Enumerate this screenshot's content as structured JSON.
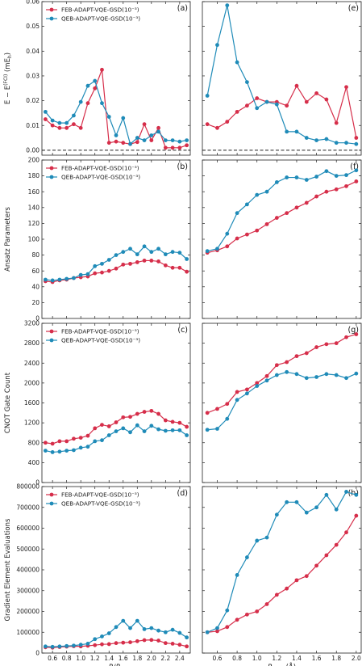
{
  "colors": {
    "feb": "#d62e4a",
    "qeb": "#1f8bb8"
  },
  "chart_data": [
    {
      "type": "line",
      "panel": "(a)",
      "ylabel": "E − E(FCI) (mEh)",
      "xlabel": "",
      "ylim": [
        -0.002,
        0.06
      ],
      "yticks": [
        "0.00",
        "0.01",
        "0.02",
        "0.03",
        "0.04",
        "0.05",
        "0.06"
      ],
      "xticks": [],
      "reference_line": 0,
      "legend": "top-left",
      "x": [
        0.5,
        0.6,
        0.7,
        0.8,
        0.9,
        1.0,
        1.1,
        1.2,
        1.3,
        1.4,
        1.5,
        1.6,
        1.7,
        1.8,
        1.9,
        2.0,
        2.1,
        2.2,
        2.3,
        2.4,
        2.5
      ],
      "series": [
        {
          "name": "FEB-ADAPT-VQE-GSD(10⁻³)",
          "values": [
            0.0125,
            0.01,
            0.009,
            0.009,
            0.0105,
            0.009,
            0.019,
            0.025,
            0.0325,
            0.003,
            0.0035,
            0.003,
            0.0025,
            0.0033,
            0.0105,
            0.004,
            0.009,
            0.001,
            0.001,
            0.001,
            0.002
          ]
        },
        {
          "name": "QEB-ADAPT-VQE-GSD(10⁻³)",
          "values": [
            0.0155,
            0.012,
            0.011,
            0.011,
            0.014,
            0.0195,
            0.026,
            0.028,
            0.019,
            0.0135,
            0.006,
            0.013,
            0.0025,
            0.005,
            0.004,
            0.006,
            0.0075,
            0.004,
            0.004,
            0.0035,
            0.004
          ]
        }
      ]
    },
    {
      "type": "line",
      "panel": "(e)",
      "ylabel": "",
      "xlabel": "",
      "ylim": [
        -0.002,
        0.06
      ],
      "yticks": [],
      "xticks": [],
      "reference_line": 0,
      "x": [
        0.5,
        0.6,
        0.7,
        0.8,
        0.9,
        1.0,
        1.1,
        1.2,
        1.3,
        1.4,
        1.5,
        1.6,
        1.7,
        1.8,
        1.9,
        2.0
      ],
      "series": [
        {
          "name": "FEB-ADAPT-VQE-GSD(10⁻³)",
          "values": [
            0.0105,
            0.009,
            0.0115,
            0.0155,
            0.018,
            0.021,
            0.0195,
            0.0195,
            0.018,
            0.026,
            0.0195,
            0.023,
            0.0205,
            0.011,
            0.0255,
            0.005
          ]
        },
        {
          "name": "QEB-ADAPT-VQE-GSD(10⁻³)",
          "values": [
            0.022,
            0.0425,
            0.0585,
            0.0355,
            0.0275,
            0.017,
            0.0195,
            0.0185,
            0.0075,
            0.0075,
            0.005,
            0.004,
            0.0045,
            0.003,
            0.003,
            0.0025
          ]
        }
      ]
    },
    {
      "type": "line",
      "panel": "(b)",
      "ylabel": "Ansatz Parameters",
      "xlabel": "",
      "ylim": [
        0,
        200
      ],
      "yticks": [
        "0",
        "20",
        "40",
        "60",
        "80",
        "100",
        "120",
        "140",
        "160",
        "180",
        "200"
      ],
      "xticks": [],
      "legend": "top-left",
      "x": [
        0.5,
        0.6,
        0.7,
        0.8,
        0.9,
        1.0,
        1.1,
        1.2,
        1.3,
        1.4,
        1.5,
        1.6,
        1.7,
        1.8,
        1.9,
        2.0,
        2.1,
        2.2,
        2.3,
        2.4,
        2.5
      ],
      "series": [
        {
          "name": "FEB-ADAPT-VQE-GSD(10⁻³)",
          "values": [
            47,
            46,
            48,
            49,
            51,
            52,
            53,
            57,
            58,
            60,
            63,
            68,
            69,
            71,
            73,
            73,
            72,
            67,
            64,
            64,
            59
          ]
        },
        {
          "name": "QEB-ADAPT-VQE-GSD(10⁻³)",
          "values": [
            49,
            48,
            49,
            50,
            51,
            55,
            56,
            66,
            69,
            74,
            80,
            84,
            88,
            81,
            91,
            84,
            88,
            81,
            84,
            83,
            75
          ]
        }
      ]
    },
    {
      "type": "line",
      "panel": "(f)",
      "ylabel": "",
      "xlabel": "",
      "ylim": [
        0,
        200
      ],
      "yticks": [],
      "xticks": [],
      "x": [
        0.5,
        0.6,
        0.7,
        0.8,
        0.9,
        1.0,
        1.1,
        1.2,
        1.3,
        1.4,
        1.5,
        1.6,
        1.7,
        1.8,
        1.9,
        2.0
      ],
      "series": [
        {
          "name": "FEB-ADAPT-VQE-GSD(10⁻³)",
          "values": [
            83,
            86,
            91,
            101,
            106,
            111,
            119,
            127,
            133,
            140,
            146,
            154,
            160,
            163,
            167,
            173
          ]
        },
        {
          "name": "QEB-ADAPT-VQE-GSD(10⁻³)",
          "values": [
            85,
            88,
            107,
            133,
            144,
            156,
            160,
            172,
            178,
            178,
            175,
            179,
            186,
            180,
            181,
            187
          ]
        }
      ]
    },
    {
      "type": "line",
      "panel": "(c)",
      "ylabel": "CNOT Gate Count",
      "xlabel": "",
      "ylim": [
        0,
        3200
      ],
      "yticks": [
        "0",
        "400",
        "800",
        "1200",
        "1600",
        "2000",
        "2400",
        "2800",
        "3200"
      ],
      "xticks": [],
      "legend": "top-left",
      "x": [
        0.5,
        0.6,
        0.7,
        0.8,
        0.9,
        1.0,
        1.1,
        1.2,
        1.3,
        1.4,
        1.5,
        1.6,
        1.7,
        1.8,
        1.9,
        2.0,
        2.1,
        2.2,
        2.3,
        2.4,
        2.5
      ],
      "series": [
        {
          "name": "FEB-ADAPT-VQE-GSD(10⁻³)",
          "values": [
            800,
            780,
            830,
            830,
            880,
            900,
            940,
            1090,
            1160,
            1130,
            1210,
            1310,
            1320,
            1380,
            1420,
            1440,
            1380,
            1250,
            1220,
            1200,
            1120
          ]
        },
        {
          "name": "QEB-ADAPT-VQE-GSD(10⁻³)",
          "values": [
            640,
            610,
            620,
            640,
            650,
            700,
            720,
            830,
            850,
            950,
            1030,
            1090,
            1010,
            1150,
            1030,
            1140,
            1070,
            1040,
            1050,
            1050,
            950
          ]
        }
      ]
    },
    {
      "type": "line",
      "panel": "(g)",
      "ylabel": "",
      "xlabel": "",
      "ylim": [
        0,
        3200
      ],
      "yticks": [],
      "xticks": [],
      "x": [
        0.5,
        0.6,
        0.7,
        0.8,
        0.9,
        1.0,
        1.1,
        1.2,
        1.3,
        1.4,
        1.5,
        1.6,
        1.7,
        1.8,
        1.9,
        2.0
      ],
      "series": [
        {
          "name": "FEB-ADAPT-VQE-GSD(10⁻³)",
          "values": [
            1400,
            1480,
            1580,
            1820,
            1870,
            2000,
            2140,
            2360,
            2420,
            2540,
            2600,
            2720,
            2780,
            2800,
            2920,
            2980
          ]
        },
        {
          "name": "QEB-ADAPT-VQE-GSD(10⁻³)",
          "values": [
            1060,
            1080,
            1280,
            1660,
            1790,
            1940,
            2050,
            2160,
            2220,
            2180,
            2100,
            2120,
            2180,
            2160,
            2100,
            2190
          ]
        }
      ]
    },
    {
      "type": "line",
      "panel": "(d)",
      "ylabel": "Gradient Element Evaluations",
      "xlabel": "R/Re",
      "ylim": [
        0,
        800000
      ],
      "yticks": [
        "0",
        "100000",
        "200000",
        "300000",
        "400000",
        "500000",
        "600000",
        "700000",
        "800000"
      ],
      "xticks": [
        "0.6",
        "0.8",
        "1.0",
        "1.2",
        "1.4",
        "1.6",
        "1.8",
        "2.0",
        "2.2",
        "2.4"
      ],
      "legend": "top-left",
      "x": [
        0.5,
        0.6,
        0.7,
        0.8,
        0.9,
        1.0,
        1.1,
        1.2,
        1.3,
        1.4,
        1.5,
        1.6,
        1.7,
        1.8,
        1.9,
        2.0,
        2.1,
        2.2,
        2.3,
        2.4,
        2.5
      ],
      "series": [
        {
          "name": "FEB-ADAPT-VQE-GSD(10⁻³)",
          "values": [
            28000,
            26000,
            29000,
            31000,
            33000,
            32000,
            35000,
            38000,
            42000,
            43000,
            48000,
            50000,
            52000,
            57000,
            62000,
            63000,
            60000,
            48000,
            45000,
            40000,
            32000
          ]
        },
        {
          "name": "QEB-ADAPT-VQE-GSD(10⁻³)",
          "values": [
            32000,
            30000,
            32000,
            34000,
            36000,
            40000,
            45000,
            67000,
            80000,
            95000,
            125000,
            155000,
            120000,
            155000,
            115000,
            120000,
            108000,
            100000,
            112000,
            97000,
            75000
          ]
        }
      ]
    },
    {
      "type": "line",
      "panel": "(h)",
      "ylabel": "",
      "xlabel": "RH−H (Å)",
      "ylim": [
        0,
        800000
      ],
      "yticks": [],
      "xticks": [
        "0.6",
        "0.8",
        "1.0",
        "1.2",
        "1.4",
        "1.6",
        "1.8",
        "2.0"
      ],
      "x": [
        0.5,
        0.6,
        0.7,
        0.8,
        0.9,
        1.0,
        1.1,
        1.2,
        1.3,
        1.4,
        1.5,
        1.6,
        1.7,
        1.8,
        1.9,
        2.0
      ],
      "series": [
        {
          "name": "FEB-ADAPT-VQE-GSD(10⁻³)",
          "values": [
            100000,
            105000,
            125000,
            160000,
            185000,
            200000,
            235000,
            280000,
            310000,
            350000,
            370000,
            420000,
            470000,
            520000,
            580000,
            660000
          ]
        },
        {
          "name": "QEB-ADAPT-VQE-GSD(10⁻³)",
          "values": [
            100000,
            120000,
            205000,
            375000,
            460000,
            540000,
            555000,
            665000,
            725000,
            725000,
            675000,
            700000,
            760000,
            690000,
            775000,
            760000
          ]
        }
      ]
    }
  ]
}
